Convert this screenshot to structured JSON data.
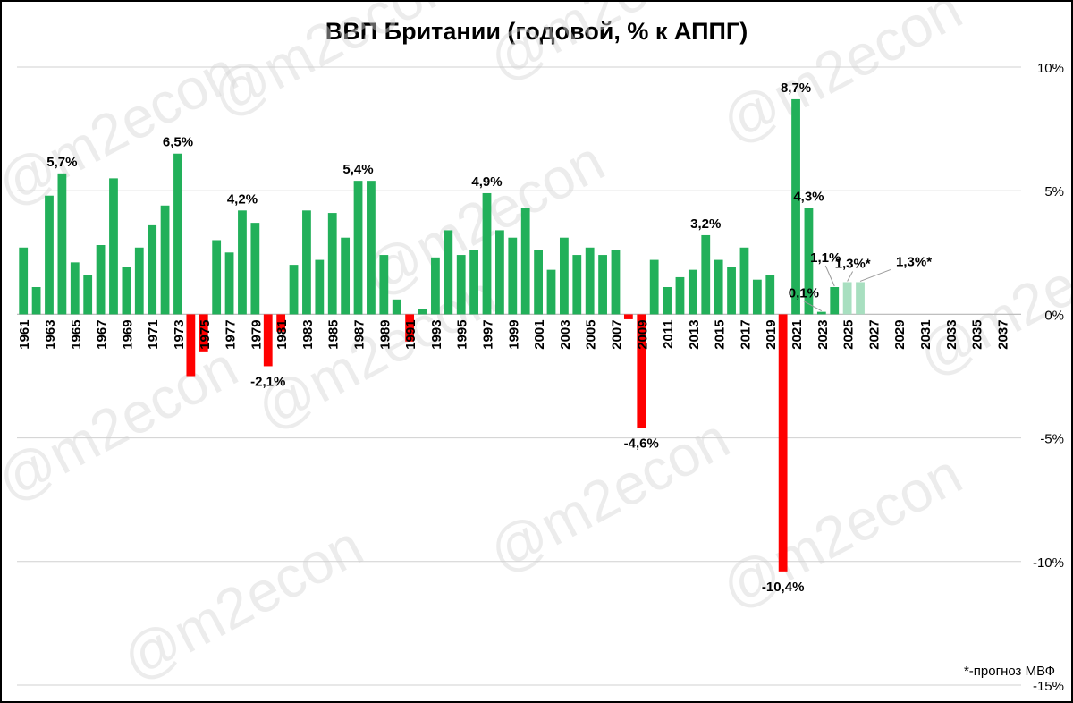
{
  "chart_data": {
    "type": "bar",
    "title": "ВВП Британии (годовой, % к АППГ)",
    "note": "*-прогноз МВФ",
    "watermark": "@m2econ",
    "ylim": [
      -15,
      10
    ],
    "yticks": [
      {
        "value": 10,
        "label": "10%"
      },
      {
        "value": 5,
        "label": "5%"
      },
      {
        "value": 0,
        "label": "0%"
      },
      {
        "value": -5,
        "label": "-5%"
      },
      {
        "value": -10,
        "label": "-10%"
      },
      {
        "value": -15,
        "label": "-15%"
      }
    ],
    "axis_position": "right",
    "grid": true,
    "colors": {
      "positive": "#22b05a",
      "negative": "#ff0000",
      "forecast": "#a8dfc0"
    },
    "x_year_range": [
      1961,
      2038
    ],
    "xtick_labels": [
      "1961",
      "1963",
      "1965",
      "1967",
      "1969",
      "1971",
      "1973",
      "1975",
      "1977",
      "1979",
      "1981",
      "1983",
      "1985",
      "1987",
      "1989",
      "1991",
      "1993",
      "1995",
      "1997",
      "1999",
      "2001",
      "2003",
      "2005",
      "2007",
      "2009",
      "2011",
      "2013",
      "2015",
      "2017",
      "2019",
      "2021",
      "2023",
      "2025",
      "2027",
      "2029",
      "2031",
      "2033",
      "2035",
      "2037"
    ],
    "series": [
      {
        "values": [
          {
            "year": 1961,
            "value": 2.7
          },
          {
            "year": 1962,
            "value": 1.1
          },
          {
            "year": 1963,
            "value": 4.8
          },
          {
            "year": 1964,
            "value": 5.7,
            "label": "5,7%"
          },
          {
            "year": 1965,
            "value": 2.1
          },
          {
            "year": 1966,
            "value": 1.6
          },
          {
            "year": 1967,
            "value": 2.8
          },
          {
            "year": 1968,
            "value": 5.5
          },
          {
            "year": 1969,
            "value": 1.9
          },
          {
            "year": 1970,
            "value": 2.7
          },
          {
            "year": 1971,
            "value": 3.6
          },
          {
            "year": 1972,
            "value": 4.4
          },
          {
            "year": 1973,
            "value": 6.5,
            "label": "6,5%"
          },
          {
            "year": 1974,
            "value": -2.5
          },
          {
            "year": 1975,
            "value": -1.5
          },
          {
            "year": 1976,
            "value": 3.0
          },
          {
            "year": 1977,
            "value": 2.5
          },
          {
            "year": 1978,
            "value": 4.2,
            "label": "4,2%"
          },
          {
            "year": 1979,
            "value": 3.7
          },
          {
            "year": 1980,
            "value": -2.1,
            "label": "-2,1%"
          },
          {
            "year": 1981,
            "value": -0.7
          },
          {
            "year": 1982,
            "value": 2.0
          },
          {
            "year": 1983,
            "value": 4.2
          },
          {
            "year": 1984,
            "value": 2.2
          },
          {
            "year": 1985,
            "value": 4.1
          },
          {
            "year": 1986,
            "value": 3.1
          },
          {
            "year": 1987,
            "value": 5.4,
            "label": "5,4%"
          },
          {
            "year": 1988,
            "value": 5.4
          },
          {
            "year": 1989,
            "value": 2.4
          },
          {
            "year": 1990,
            "value": 0.6
          },
          {
            "year": 1991,
            "value": -1.1
          },
          {
            "year": 1992,
            "value": 0.2
          },
          {
            "year": 1993,
            "value": 2.3
          },
          {
            "year": 1994,
            "value": 3.4
          },
          {
            "year": 1995,
            "value": 2.4
          },
          {
            "year": 1996,
            "value": 2.6
          },
          {
            "year": 1997,
            "value": 4.9,
            "label": "4,9%"
          },
          {
            "year": 1998,
            "value": 3.4
          },
          {
            "year": 1999,
            "value": 3.1
          },
          {
            "year": 2000,
            "value": 4.3
          },
          {
            "year": 2001,
            "value": 2.6
          },
          {
            "year": 2002,
            "value": 1.8
          },
          {
            "year": 2003,
            "value": 3.1
          },
          {
            "year": 2004,
            "value": 2.4
          },
          {
            "year": 2005,
            "value": 2.7
          },
          {
            "year": 2006,
            "value": 2.4
          },
          {
            "year": 2007,
            "value": 2.6
          },
          {
            "year": 2008,
            "value": -0.2
          },
          {
            "year": 2009,
            "value": -4.6,
            "label": "-4,6%"
          },
          {
            "year": 2010,
            "value": 2.2
          },
          {
            "year": 2011,
            "value": 1.1
          },
          {
            "year": 2012,
            "value": 1.5
          },
          {
            "year": 2013,
            "value": 1.8
          },
          {
            "year": 2014,
            "value": 3.2,
            "label": "3,2%"
          },
          {
            "year": 2015,
            "value": 2.2
          },
          {
            "year": 2016,
            "value": 1.9
          },
          {
            "year": 2017,
            "value": 2.7
          },
          {
            "year": 2018,
            "value": 1.4
          },
          {
            "year": 2019,
            "value": 1.6
          },
          {
            "year": 2020,
            "value": -10.4,
            "label": "-10,4%"
          },
          {
            "year": 2021,
            "value": 8.7,
            "label": "8,7%"
          },
          {
            "year": 2022,
            "value": 4.3,
            "label": "4,3%"
          },
          {
            "year": 2023,
            "value": 0.1,
            "label": "0,1%"
          },
          {
            "year": 2024,
            "value": 1.1,
            "label": "1,1%"
          },
          {
            "year": 2025,
            "value": 1.3,
            "label": "1,3%*",
            "forecast": true
          },
          {
            "year": 2026,
            "value": 1.3,
            "label": "1,3%*",
            "forecast": true
          }
        ]
      }
    ]
  }
}
